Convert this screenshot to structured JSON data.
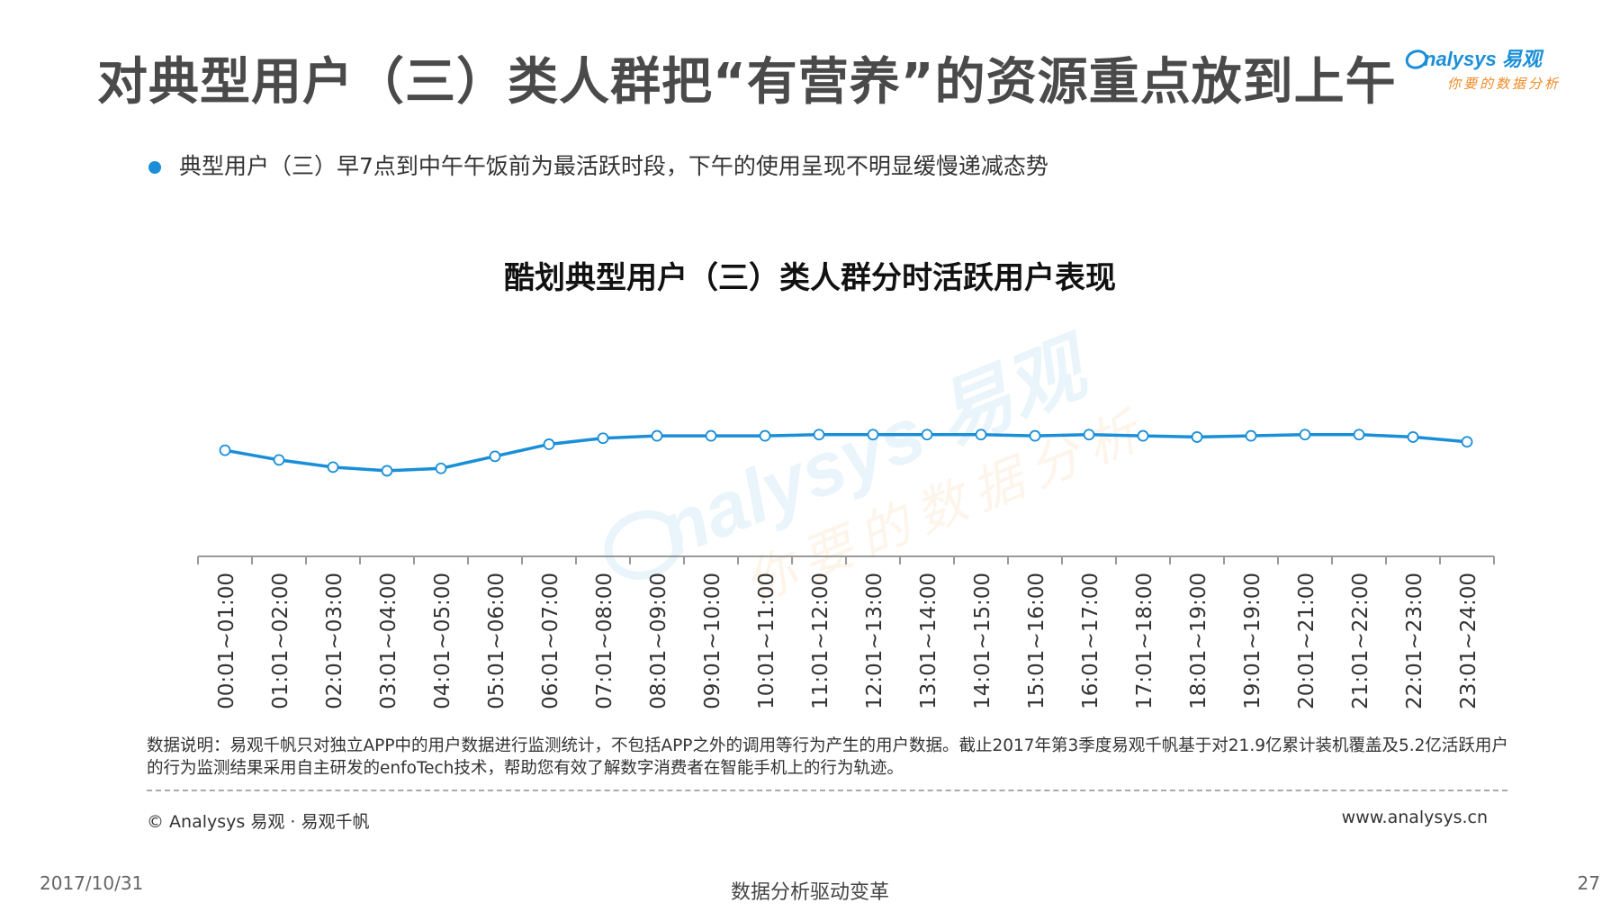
{
  "header": {
    "title": "对典型用户（三）类人群把“有营养”的资源重点放到上午",
    "logo_text": "nalysys 易观",
    "logo_slogan": "你要的数据分析"
  },
  "bullet": {
    "text": "典型用户（三）早7点到中午午饭前为最活跃时段，下午的使用呈现不明显缓慢递减态势"
  },
  "watermark": {
    "line1": "nalysys 易观",
    "line2": "你要的数据分析"
  },
  "colors": {
    "line": "#1a8fd8",
    "title": "#4a4a4a",
    "bullet": "#1a8fd8",
    "logo_blue": "#1a8fd8",
    "logo_orange": "#f08a24"
  },
  "chart_data": {
    "type": "line",
    "title": "酷划典型用户（三）类人群分时活跃用户表现",
    "xlabel": "",
    "ylabel": "",
    "y_axis_visible": false,
    "grid": false,
    "categories": [
      "00:01~01:00",
      "01:01~02:00",
      "02:01~03:00",
      "03:01~04:00",
      "04:01~05:00",
      "05:01~06:00",
      "06:01~07:00",
      "07:01~08:00",
      "08:01~09:00",
      "09:01~10:00",
      "10:01~11:00",
      "11:01~12:00",
      "12:01~13:00",
      "13:01~14:00",
      "14:01~15:00",
      "15:01~16:00",
      "16:01~17:00",
      "17:01~18:00",
      "18:01~19:00",
      "19:01~19:00",
      "20:01~21:00",
      "21:01~22:00",
      "22:01~23:00",
      "23:01~24:00"
    ],
    "series": [
      {
        "values": [
          0.88,
          0.8,
          0.74,
          0.71,
          0.73,
          0.83,
          0.93,
          0.98,
          1.0,
          1.0,
          1.0,
          1.01,
          1.01,
          1.01,
          1.01,
          1.0,
          1.01,
          1.0,
          0.99,
          1.0,
          1.01,
          1.01,
          0.99,
          0.95
        ]
      }
    ],
    "ylim": [
      0,
      2.3
    ]
  },
  "footer": {
    "note": "数据说明：易观千帆只对独立APP中的用户数据进行监测统计，不包括APP之外的调用等行为产生的用户数据。截止2017年第3季度易观千帆基于对21.9亿累计装机覆盖及5.2亿活跃用户的行为监测结果采用自主研发的enfoTech技术，帮助您有效了解数字消费者在智能手机上的行为轨迹。",
    "copyright": "© Analysys 易观 · 易观千帆",
    "website": "www.analysys.cn",
    "date": "2017/10/31",
    "slogan": "数据分析驱动变革",
    "page_number": "27"
  }
}
